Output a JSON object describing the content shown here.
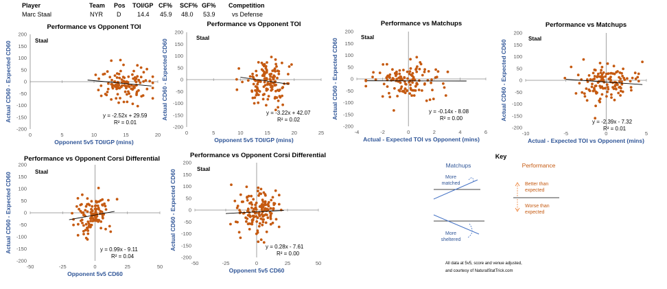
{
  "header": {
    "columns": [
      "Player",
      "Team",
      "Pos",
      "TOI/GP",
      "CF%",
      "SCF%",
      "GF%",
      "Competition"
    ],
    "values": [
      "Marc Staal",
      "NYR",
      "D",
      "14.4",
      "45.9",
      "48.0",
      "53.9",
      "vs Defense"
    ]
  },
  "colors": {
    "point": "#c55a11",
    "axis_label": "#2f5597",
    "trend": "#000000",
    "key_arrow_blue": "#4472c4",
    "key_arrow_orange": "#ed7d31"
  },
  "chart_data": [
    {
      "type": "scatter",
      "title": "Performance vs Opponent TOI",
      "label": "Staal",
      "xlabel": "Opponent 5v5 TOI/GP (mins)",
      "ylabel": "Actual CD60 - Expected CD60",
      "xlim": [
        0,
        20
      ],
      "ylim": [
        -200,
        200
      ],
      "xticks": [
        0,
        5,
        10,
        15,
        20
      ],
      "yticks": [
        200,
        150,
        100,
        50,
        0,
        -50,
        -100,
        -150,
        -200
      ],
      "x_axis_at": 0,
      "y_axis_at": 0,
      "equation": "y = -2.52x + 29.59",
      "r2": "R² = 0.01",
      "trend": {
        "slope": -2.52,
        "intercept": 29.59,
        "x": [
          9,
          19
        ]
      },
      "cloud": {
        "cx": 14.7,
        "sx": 2.0,
        "xmin": 9.2,
        "xmax": 19.2,
        "cy": -7,
        "sy": 42,
        "n": 120,
        "seed": 11
      }
    },
    {
      "type": "scatter",
      "title": "Performance vs Opponent TOI",
      "label": "Staal",
      "xlabel": "Opponent 5v5 TOI/GP (mins)",
      "ylabel": "Actual CD60 - Expected CD60",
      "xlim": [
        0,
        25
      ],
      "ylim": [
        -200,
        200
      ],
      "xticks": [
        0,
        5,
        10,
        15,
        20,
        25
      ],
      "yticks": [
        200,
        150,
        100,
        50,
        0,
        -50,
        -100,
        -150,
        -200
      ],
      "x_axis_at": 0,
      "y_axis_at": 0,
      "equation": "y = -3.22x + 42.07",
      "r2": "R² = 0.02",
      "trend": {
        "slope": -3.22,
        "intercept": 42.07,
        "x": [
          10,
          19
        ]
      },
      "cloud": {
        "cx": 15,
        "sx": 2.1,
        "xmin": 9.3,
        "xmax": 19.5,
        "cy": -6,
        "sy": 45,
        "n": 140,
        "seed": 23
      }
    },
    {
      "type": "scatter",
      "title": "Performance vs Matchups",
      "label": "Staal",
      "xlabel": "Actual - Expected TOI vs Opponent (mins)",
      "ylabel": "Actual CD60 - Expected CD60",
      "xlim": [
        -4,
        6
      ],
      "ylim": [
        -200,
        200
      ],
      "xticks": [
        -4,
        -2,
        0,
        2,
        4,
        6
      ],
      "yticks": [
        200,
        150,
        100,
        50,
        0,
        -50,
        -100,
        -150,
        -200
      ],
      "x_axis_at": 0,
      "y_axis_at": 0,
      "equation": "y = -0.14x - 8.08",
      "r2": "R² = 0.00",
      "trend": {
        "slope": -0.14,
        "intercept": -8.08,
        "x": [
          -3.2,
          4.5
        ]
      },
      "cloud": {
        "cx": 0,
        "sx": 1.4,
        "xmin": -3.3,
        "xmax": 4.6,
        "cy": -8,
        "sy": 40,
        "n": 130,
        "seed": 37
      }
    },
    {
      "type": "scatter",
      "title": "Performance vs Matchups",
      "label": "Staal",
      "xlabel": "Actual - Expected TOI vs Opponent (mins)",
      "ylabel": "Actual CD60 - Expected CD60",
      "xlim": [
        -10,
        5
      ],
      "ylim": [
        -200,
        200
      ],
      "xticks": [
        -10,
        -5,
        0,
        5
      ],
      "yticks": [
        200,
        150,
        100,
        50,
        0,
        -50,
        -100,
        -150,
        -200
      ],
      "x_axis_at": 0,
      "y_axis_at": 0,
      "equation": "y = -2.39x - 7.32",
      "r2": "R² = 0.01",
      "trend": {
        "slope": -2.39,
        "intercept": -7.32,
        "x": [
          -5,
          4.5
        ]
      },
      "cloud": {
        "cx": 0,
        "sx": 1.8,
        "xmin": -5.8,
        "xmax": 4.5,
        "cy": -8,
        "sy": 42,
        "n": 130,
        "seed": 41
      }
    },
    {
      "type": "scatter",
      "title": "Performance vs Opponent Corsi Differential",
      "label": "Staal",
      "xlabel": "Opponent 5v5 CD60",
      "ylabel": "Actual CD60 - Expected CD60",
      "xlim": [
        -50,
        50
      ],
      "ylim": [
        -200,
        200
      ],
      "xticks": [
        -50,
        -25,
        0,
        25,
        50
      ],
      "yticks": [
        200,
        150,
        100,
        50,
        0,
        -50,
        -100,
        -150,
        -200
      ],
      "x_axis_at": 0,
      "y_axis_at": 0,
      "equation": "y = 0.99x - 9.11",
      "r2": "R² = 0.04",
      "trend": {
        "slope": 0.99,
        "intercept": -9.11,
        "x": [
          -20,
          15
        ]
      },
      "cloud": {
        "cx": -2,
        "sx": 7,
        "xmin": -30,
        "xmax": 17,
        "cy": -8,
        "sy": 40,
        "n": 120,
        "seed": 53
      }
    },
    {
      "type": "scatter",
      "title": "Performance vs Opponent Corsi Differential",
      "label": "Staal",
      "xlabel": "Opponent 5v5 CD60",
      "ylabel": "Actual CD60 - Expected CD60",
      "xlim": [
        -50,
        50
      ],
      "ylim": [
        -200,
        200
      ],
      "xticks": [
        -50,
        -25,
        0,
        25,
        50
      ],
      "yticks": [
        200,
        150,
        100,
        50,
        0,
        -50,
        -100,
        -150,
        -200
      ],
      "x_axis_at": 0,
      "y_axis_at": 0,
      "equation": "y = 0.28x - 7.61",
      "r2": "R² = 0.00",
      "trend": {
        "slope": 0.28,
        "intercept": -7.61,
        "x": [
          -25,
          22
        ]
      },
      "cloud": {
        "cx": 0,
        "sx": 9,
        "xmin": -28,
        "xmax": 24,
        "cy": -8,
        "sy": 42,
        "n": 150,
        "seed": 67
      }
    }
  ],
  "key": {
    "title": "Key",
    "matchups_title": "Matchups",
    "more_matched": "More matched",
    "more_sheltered": "More sheltered",
    "performance_title": "Performance",
    "better": "Better than expected",
    "worse": "Worse than expected",
    "footnote": [
      "All data at 5v5, score and venue adjusted,",
      "and courtesy of NaturalStatTrick.com"
    ]
  }
}
